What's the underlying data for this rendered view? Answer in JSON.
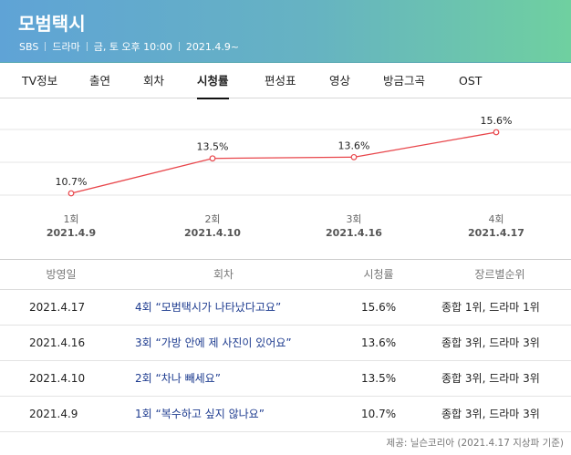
{
  "header": {
    "title": "모범택시",
    "meta": [
      "SBS",
      "드라마",
      "금, 토 오후 10:00",
      "2021.4.9~"
    ]
  },
  "tabs": [
    {
      "label": "TV정보"
    },
    {
      "label": "출연"
    },
    {
      "label": "회차"
    },
    {
      "label": "시청률",
      "active": true
    },
    {
      "label": "편성표"
    },
    {
      "label": "영상"
    },
    {
      "label": "방금그곡"
    },
    {
      "label": "OST"
    }
  ],
  "chart_data": {
    "type": "line",
    "categories": [
      "1회",
      "2회",
      "3회",
      "4회"
    ],
    "dates": [
      "2021.4.9",
      "2021.4.10",
      "2021.4.16",
      "2021.4.17"
    ],
    "series": [
      {
        "values": [
          10.7,
          13.5,
          13.6,
          15.6
        ],
        "labels": [
          "10.7%",
          "13.5%",
          "13.6%",
          "15.6%"
        ]
      }
    ],
    "grid": true,
    "colors": {
      "line": "#e8454a",
      "grid": "#e6e6e6"
    }
  },
  "table": {
    "headers": [
      "방영일",
      "회차",
      "시청률",
      "장르별순위"
    ],
    "rows": [
      {
        "date": "2021.4.17",
        "episode": "4회 “모범택시가 나타났다고요”",
        "rating": "15.6%",
        "rank": "종합 1위, 드라마 1위"
      },
      {
        "date": "2021.4.16",
        "episode": "3회 “가방 안에 제 사진이 있어요”",
        "rating": "13.6%",
        "rank": "종합 3위, 드라마 3위"
      },
      {
        "date": "2021.4.10",
        "episode": "2회 “차나 빼세요”",
        "rating": "13.5%",
        "rank": "종합 3위, 드라마 3위"
      },
      {
        "date": "2021.4.9",
        "episode": "1회 “복수하고 싶지 않나요”",
        "rating": "10.7%",
        "rank": "종합 3위, 드라마 3위"
      }
    ]
  },
  "source": "제공: 닐슨코리아 (2021.4.17 지상파 기준)"
}
